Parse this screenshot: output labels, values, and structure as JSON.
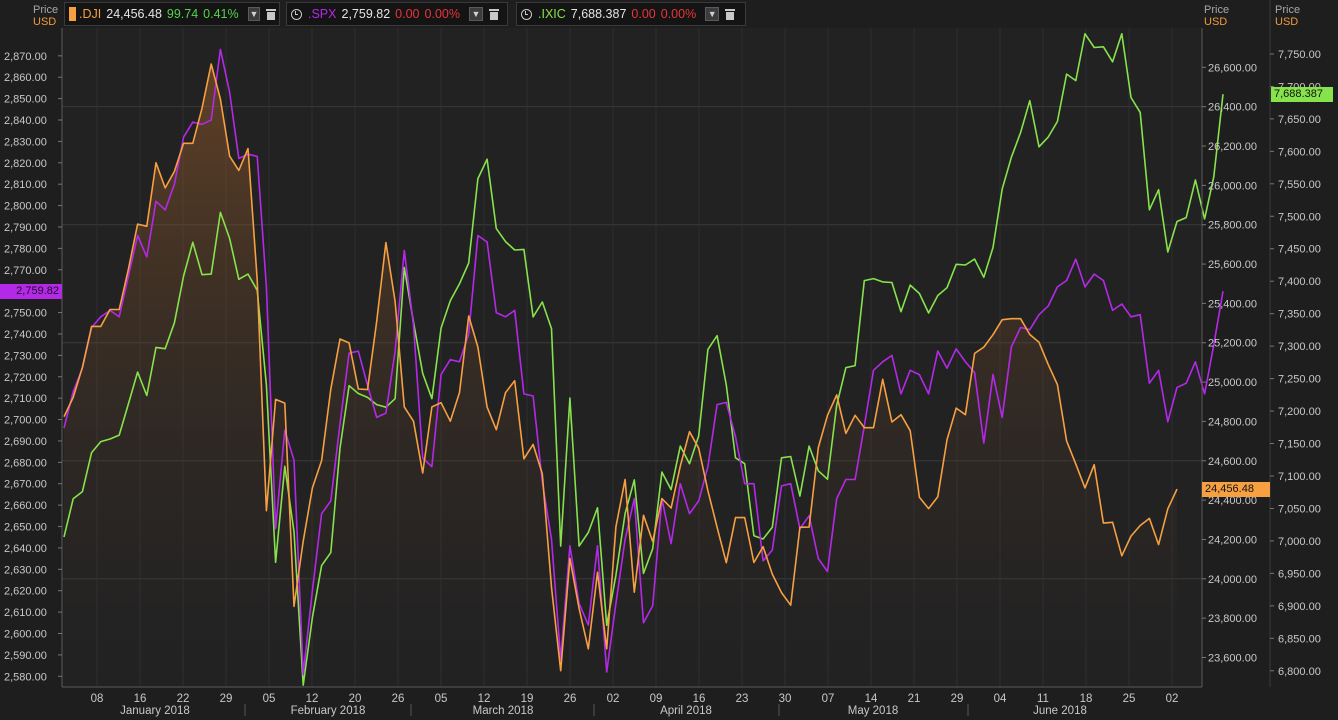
{
  "axis_headers": {
    "left": {
      "price": "Price",
      "currency": "USD"
    },
    "mid": {
      "price": "Price",
      "currency": "USD"
    },
    "right": {
      "price": "Price",
      "currency": "USD"
    }
  },
  "instruments": [
    {
      "symbol": ".DJI",
      "last": "24,456.48",
      "change": "99.74",
      "pct": "0.41%",
      "color": "#f6a042",
      "change_color": "#56d24c"
    },
    {
      "symbol": ".SPX",
      "last": "2,759.82",
      "change": "0.00",
      "pct": "0.00%",
      "color": "#b429e8",
      "change_color": "#e8353a"
    },
    {
      "symbol": ".IXIC",
      "last": "7,688.387",
      "change": "0.00",
      "pct": "0.00%",
      "color": "#86e34c",
      "change_color": "#e8353a"
    }
  ],
  "flags": {
    "spx": {
      "text": "2,759.82",
      "color": "#b429e8"
    },
    "dji": {
      "text": "24,456.48",
      "color": "#f6a042"
    },
    "ixic": {
      "text": "7,688.387",
      "color": "#86e34c"
    }
  },
  "icons": {
    "dropdown": "chevron-down-icon",
    "delete": "trash-icon",
    "pin": "clock-icon"
  },
  "chart_data": {
    "type": "line",
    "x_axis": {
      "day_ticks": [
        "08",
        "16",
        "22",
        "29",
        "05",
        "12",
        "20",
        "26",
        "05",
        "12",
        "19",
        "26",
        "02",
        "09",
        "16",
        "23",
        "30",
        "07",
        "14",
        "21",
        "29",
        "04",
        "11",
        "18",
        "25",
        "02"
      ],
      "months": [
        "January 2018",
        "February 2018",
        "March 2018",
        "April 2018",
        "May 2018",
        "June 2018"
      ]
    },
    "left_axis": {
      "series": ".SPX",
      "ylim": [
        2575,
        2883
      ],
      "ticks": [
        "2,580.00",
        "2,590.00",
        "2,600.00",
        "2,610.00",
        "2,620.00",
        "2,630.00",
        "2,640.00",
        "2,650.00",
        "2,660.00",
        "2,670.00",
        "2,680.00",
        "2,690.00",
        "2,700.00",
        "2,710.00",
        "2,720.00",
        "2,730.00",
        "2,740.00",
        "2,750.00",
        "2,760.00",
        "2,770.00",
        "2,780.00",
        "2,790.00",
        "2,800.00",
        "2,810.00",
        "2,820.00",
        "2,830.00",
        "2,840.00",
        "2,850.00",
        "2,860.00",
        "2,870.00"
      ]
    },
    "mid_axis": {
      "series": ".DJI",
      "ylim": [
        23450,
        26800
      ],
      "ticks": [
        "23,600.00",
        "23,800.00",
        "24,000.00",
        "24,200.00",
        "24,400.00",
        "24,600.00",
        "24,800.00",
        "25,000.00",
        "25,200.00",
        "25,400.00",
        "25,600.00",
        "25,800.00",
        "26,000.00",
        "26,200.00",
        "26,400.00",
        "26,600.00"
      ]
    },
    "right_axis": {
      "series": ".IXIC",
      "ylim": [
        6775,
        7790
      ],
      "ticks": [
        "6,800.00",
        "6,850.00",
        "6,900.00",
        "6,950.00",
        "7,000.00",
        "7,050.00",
        "7,100.00",
        "7,150.00",
        "7,200.00",
        "7,250.00",
        "7,300.00",
        "7,350.00",
        "7,400.00",
        "7,450.00",
        "7,500.00",
        "7,550.00",
        "7,600.00",
        "7,650.00",
        "7,700.00",
        "7,750.00"
      ]
    },
    "series": [
      {
        "name": ".DJI",
        "axis": "mid",
        "color": "#f6a042",
        "values": [
          24824,
          24922,
          25075,
          25283,
          25283,
          25369,
          25369,
          25574,
          25803,
          25792,
          26115,
          25987,
          26071,
          26214,
          26214,
          26392,
          26617,
          26439,
          26149,
          26076,
          26187,
          25520,
          24346,
          24912,
          24893,
          23860,
          24191,
          24462,
          24601,
          24964,
          25219,
          25199,
          24965,
          24962,
          25309,
          25709,
          25410,
          24874,
          24801,
          24538,
          24874,
          24895,
          24801,
          24947,
          25336,
          25178,
          24873,
          24758,
          24946,
          25007,
          24610,
          24683,
          24534,
          23957,
          23533,
          24103,
          23849,
          23644,
          24033,
          23644,
          24264,
          24505,
          23932,
          24323,
          24189,
          24408,
          24360,
          24573,
          24748,
          24664,
          24448,
          24262,
          24082,
          24311,
          24311,
          24083,
          24163,
          24024,
          23930,
          23866,
          24262,
          24263,
          24667,
          24831,
          24935,
          24739,
          24831,
          24768,
          24768,
          25014,
          24797,
          24834,
          24753,
          24415,
          24357,
          24417,
          24707,
          24868,
          24834,
          25146,
          25178,
          25241,
          25317,
          25322,
          25322,
          25242,
          25203,
          25090,
          24987,
          24701,
          24583,
          24462,
          24580,
          24283,
          24287,
          24117,
          24217,
          24271,
          24307,
          24174,
          24356,
          24456
        ]
      },
      {
        "name": ".SPX",
        "axis": "left",
        "color": "#b429e8",
        "values": [
          2696,
          2713,
          2724,
          2743,
          2748,
          2751,
          2748,
          2767,
          2786,
          2776,
          2802,
          2798,
          2810,
          2832,
          2839,
          2838,
          2840,
          2873,
          2853,
          2822,
          2824,
          2823,
          2762,
          2649,
          2695,
          2681,
          2581,
          2620,
          2656,
          2662,
          2698,
          2731,
          2732,
          2716,
          2701,
          2703,
          2732,
          2779,
          2744,
          2682,
          2678,
          2721,
          2728,
          2727,
          2740,
          2786,
          2783,
          2750,
          2748,
          2751,
          2712,
          2711,
          2671,
          2644,
          2588,
          2641,
          2614,
          2604,
          2641,
          2582,
          2614,
          2644,
          2663,
          2605,
          2613,
          2663,
          2642,
          2670,
          2656,
          2662,
          2678,
          2707,
          2708,
          2692,
          2670,
          2670,
          2634,
          2639,
          2669,
          2670,
          2649,
          2655,
          2635,
          2629,
          2663,
          2672,
          2672,
          2697,
          2723,
          2727,
          2730,
          2712,
          2723,
          2721,
          2712,
          2732,
          2724,
          2733,
          2727,
          2722,
          2689,
          2721,
          2701,
          2734,
          2743,
          2742,
          2749,
          2753,
          2762,
          2765,
          2775,
          2762,
          2768,
          2765,
          2751,
          2754,
          2748,
          2749,
          2717,
          2723,
          2699,
          2715,
          2717,
          2727,
          2712,
          2735,
          2760
        ]
      },
      {
        "name": ".IXIC",
        "axis": "right",
        "color": "#86e34c",
        "values": [
          7006,
          7065,
          7076,
          7136,
          7153,
          7157,
          7163,
          7211,
          7260,
          7224,
          7298,
          7296,
          7336,
          7408,
          7460,
          7410,
          7411,
          7506,
          7466,
          7403,
          7411,
          7386,
          7240,
          6967,
          7115,
          7014,
          6778,
          6882,
          6962,
          6982,
          7143,
          7239,
          7227,
          7221,
          7210,
          7206,
          7219,
          7421,
          7337,
          7258,
          7219,
          7328,
          7370,
          7396,
          7428,
          7558,
          7588,
          7481,
          7461,
          7448,
          7449,
          7345,
          7368,
          7327,
          6992,
          7220,
          6992,
          7013,
          7051,
          6870,
          6947,
          7042,
          7094,
          6950,
          6988,
          7106,
          7079,
          7146,
          7119,
          7162,
          7295,
          7316,
          7240,
          7128,
          7119,
          7008,
          7003,
          7021,
          7128,
          7130,
          7069,
          7146,
          7108,
          7095,
          7209,
          7267,
          7270,
          7401,
          7404,
          7399,
          7398,
          7353,
          7394,
          7381,
          7351,
          7378,
          7390,
          7426,
          7425,
          7434,
          7406,
          7452,
          7542,
          7591,
          7629,
          7678,
          7607,
          7622,
          7646,
          7719,
          7709,
          7781,
          7760,
          7761,
          7738,
          7781,
          7683,
          7660,
          7510,
          7541,
          7445,
          7492,
          7498,
          7556,
          7496,
          7561,
          7688
        ]
      }
    ]
  }
}
